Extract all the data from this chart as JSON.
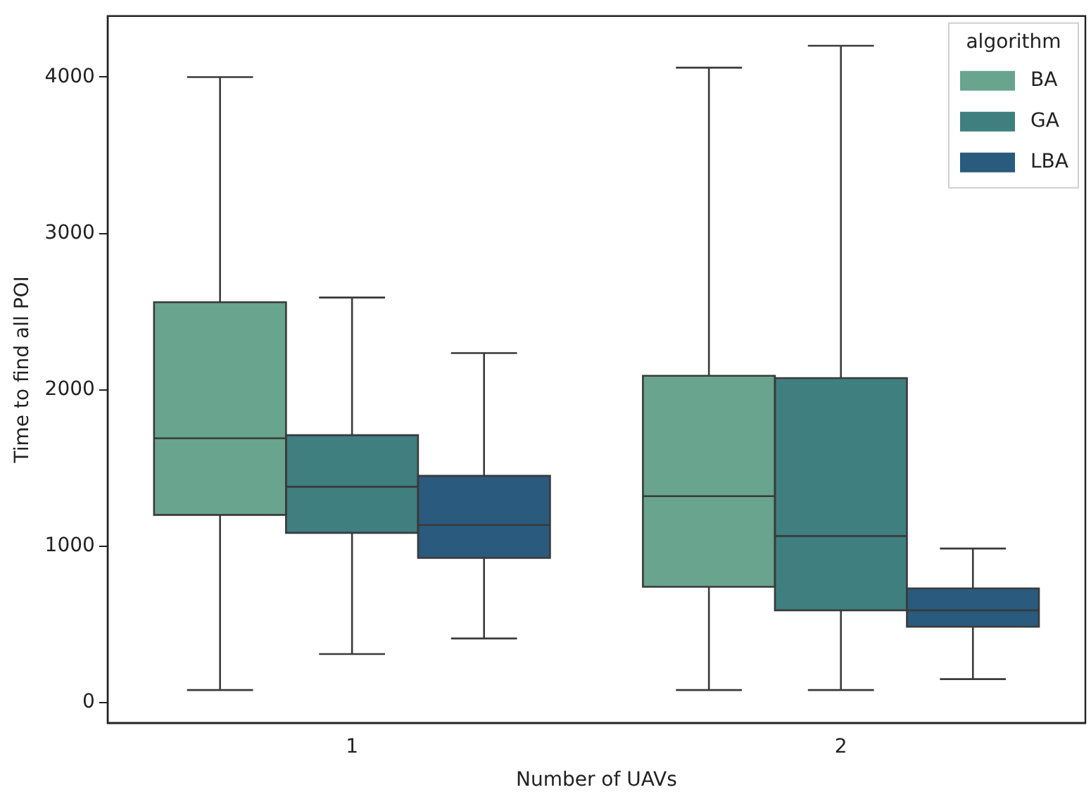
{
  "chart_data": {
    "type": "box",
    "xlabel": "Number of UAVs",
    "ylabel": "Time to find all POI",
    "legend_title": "algorithm",
    "legend": "top right",
    "grid": false,
    "categories": [
      "1",
      "2"
    ],
    "ylim": [
      -130,
      4390
    ],
    "yticks": [
      0,
      1000,
      2000,
      3000,
      4000
    ],
    "series": [
      {
        "name": "BA",
        "color": "#69a48e",
        "boxes": [
          {
            "low": 80,
            "q1": 1200,
            "median": 1690,
            "q3": 2560,
            "high": 4000
          },
          {
            "low": 80,
            "q1": 740,
            "median": 1320,
            "q3": 2090,
            "high": 4060
          }
        ]
      },
      {
        "name": "GA",
        "color": "#3f7f80",
        "boxes": [
          {
            "low": 310,
            "q1": 1085,
            "median": 1380,
            "q3": 1710,
            "high": 2590
          },
          {
            "low": 80,
            "q1": 590,
            "median": 1065,
            "q3": 2075,
            "high": 4200
          }
        ]
      },
      {
        "name": "LBA",
        "color": "#2a5a7d",
        "boxes": [
          {
            "low": 410,
            "q1": 925,
            "median": 1135,
            "q3": 1450,
            "high": 2235
          },
          {
            "low": 150,
            "q1": 485,
            "median": 590,
            "q3": 730,
            "high": 985
          }
        ]
      }
    ]
  }
}
